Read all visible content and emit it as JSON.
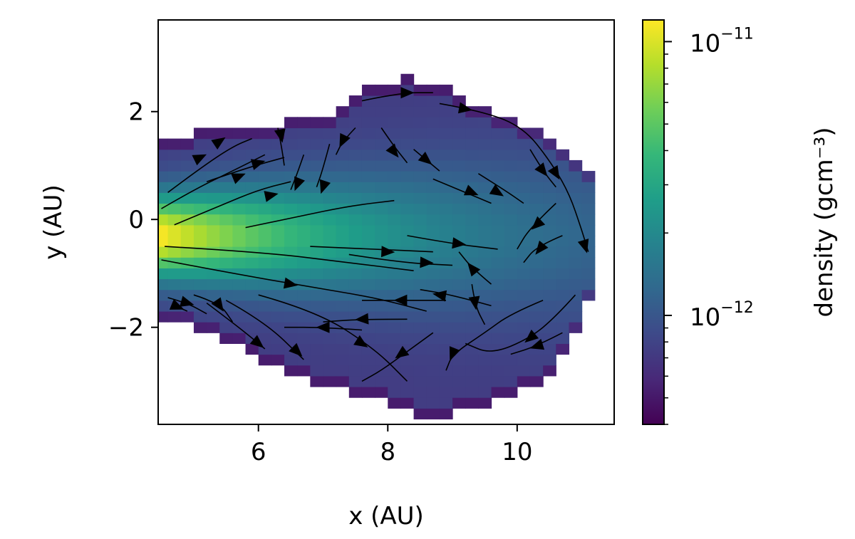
{
  "chart_data": {
    "type": "heatmap",
    "overlay": "streamlines",
    "xlabel": "x (AU)",
    "ylabel": "y (AU)",
    "xlim": [
      4.45,
      11.5
    ],
    "ylim": [
      -3.8,
      3.7
    ],
    "x_ticks": [
      6,
      8,
      10
    ],
    "x_tick_labels": [
      "6",
      "8",
      "10"
    ],
    "y_ticks": [
      2,
      0,
      -2
    ],
    "y_tick_labels": [
      "2",
      "0",
      "−2"
    ],
    "colormap": "viridis",
    "colorbar": {
      "label": "density (gcm⁻³)",
      "scale": "log",
      "range": [
        4e-13,
        1.2e-11
      ],
      "major_ticks": [
        {
          "value": 1e-11,
          "base": "10",
          "exponent": "−11"
        },
        {
          "value": 1e-12,
          "base": "10",
          "exponent": "−12"
        }
      ]
    },
    "density_field": {
      "grid_cell_au": 0.2,
      "region_x": [
        4.45,
        11.2
      ],
      "region_y": [
        -3.6,
        2.7
      ],
      "max_value_location": [
        4.5,
        -0.3
      ],
      "max_value": 1.15e-11,
      "edge_value": 4.5e-13
    },
    "colors": {
      "viridis": [
        "#440154",
        "#482878",
        "#3e4989",
        "#31688e",
        "#26828e",
        "#1f9e89",
        "#35b779",
        "#6ece58",
        "#b5de2b",
        "#fde725"
      ],
      "streamline": "#000000"
    }
  }
}
